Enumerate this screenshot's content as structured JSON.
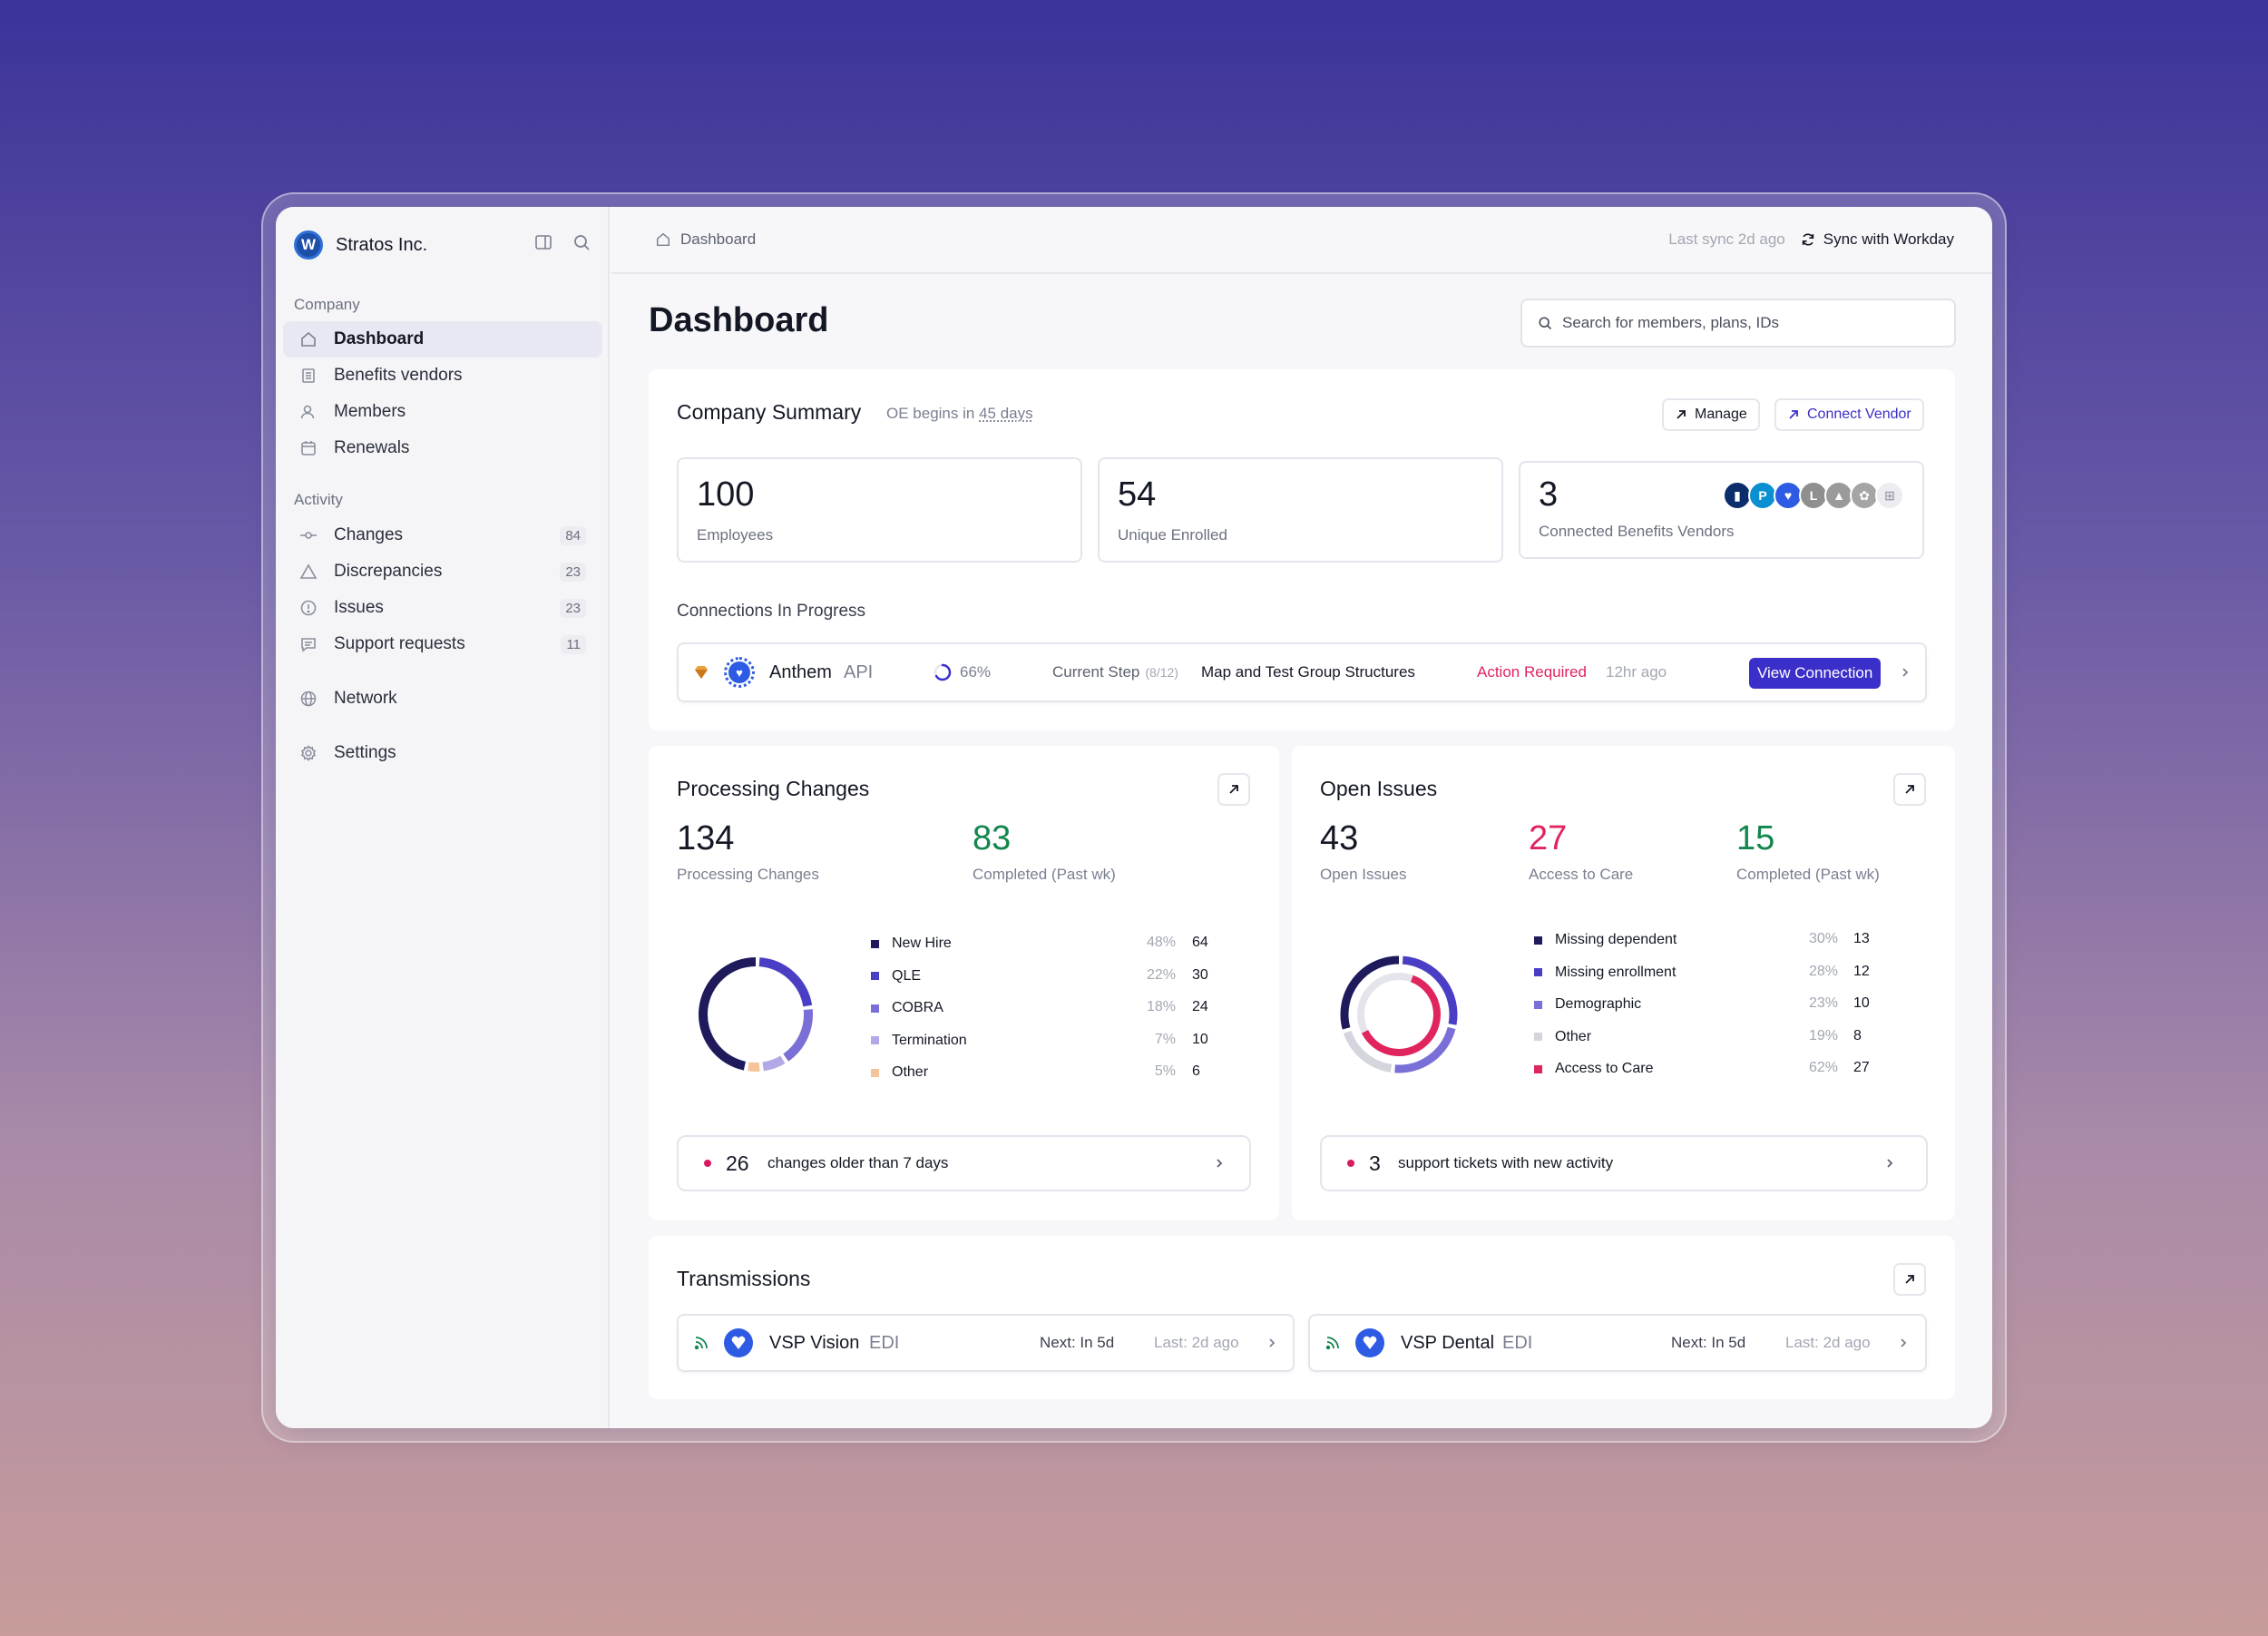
{
  "sidebar": {
    "brand": {
      "name": "Stratos Inc.",
      "logo_letter": "W"
    },
    "sections": {
      "company": "Company",
      "activity": "Activity"
    },
    "company_items": [
      {
        "label": "Dashboard",
        "icon": "home-icon",
        "active": true
      },
      {
        "label": "Benefits vendors",
        "icon": "building-icon"
      },
      {
        "label": "Members",
        "icon": "users-icon"
      },
      {
        "label": "Renewals",
        "icon": "calendar-icon"
      }
    ],
    "activity_items": [
      {
        "label": "Changes",
        "icon": "commit-icon",
        "count": "84"
      },
      {
        "label": "Discrepancies",
        "icon": "warning-icon",
        "count": "23"
      },
      {
        "label": "Issues",
        "icon": "info-circle-icon",
        "count": "23"
      },
      {
        "label": "Support requests",
        "icon": "chat-icon",
        "count": "11"
      }
    ],
    "network": "Network",
    "settings": "Settings"
  },
  "topbar": {
    "breadcrumb": "Dashboard",
    "last_sync": "Last sync 2d ago",
    "sync_label": "Sync with Workday"
  },
  "page": {
    "title": "Dashboard",
    "search_placeholder": "Search for members, plans, IDs"
  },
  "summary": {
    "title": "Company Summary",
    "oe_prefix": "OE begins in ",
    "oe_days": "45 days",
    "manage": "Manage",
    "connect_vendor": "Connect Vendor",
    "stats": [
      {
        "value": "100",
        "label": "Employees"
      },
      {
        "value": "54",
        "label": "Unique Enrolled"
      },
      {
        "value": "3",
        "label": "Connected Benefits Vendors"
      }
    ],
    "connections_title": "Connections In Progress",
    "connection": {
      "vendor": "Anthem",
      "type": "API",
      "progress": "66%",
      "progress_value": 0.66,
      "step_label": "Current Step",
      "step_count": "(8/12)",
      "step_name": "Map and Test Group Structures",
      "status": "Action Required",
      "time": "12hr ago",
      "action": "View Connection"
    }
  },
  "processing": {
    "title": "Processing Changes",
    "main_value": "134",
    "main_label": "Processing Changes",
    "completed_value": "83",
    "completed_label": "Completed (Past wk)",
    "legend": [
      {
        "label": "New Hire",
        "pct": "48%",
        "value": "64",
        "color": "#1f1a5c"
      },
      {
        "label": "QLE",
        "pct": "22%",
        "value": "30",
        "color": "#4a3fc4"
      },
      {
        "label": "COBRA",
        "pct": "18%",
        "value": "24",
        "color": "#7a6fd6"
      },
      {
        "label": "Termination",
        "pct": "7%",
        "value": "10",
        "color": "#b2aae6"
      },
      {
        "label": "Other",
        "pct": "5%",
        "value": "6",
        "color": "#f5c49a"
      }
    ],
    "footer_count": "26",
    "footer_text": "changes older than 7 days"
  },
  "issues": {
    "title": "Open Issues",
    "open_value": "43",
    "open_label": "Open Issues",
    "care_value": "27",
    "care_label": "Access to Care",
    "completed_value": "15",
    "completed_label": "Completed (Past wk)",
    "legend": [
      {
        "label": "Missing dependent",
        "pct": "30%",
        "value": "13",
        "color": "#1f1a5c"
      },
      {
        "label": "Missing enrollment",
        "pct": "28%",
        "value": "12",
        "color": "#4a3fc4"
      },
      {
        "label": "Demographic",
        "pct": "23%",
        "value": "10",
        "color": "#7a6fd6"
      },
      {
        "label": "Other",
        "pct": "19%",
        "value": "8",
        "color": "#d4d5dd"
      },
      {
        "label": "Access to Care",
        "pct": "62%",
        "value": "27",
        "color": "#e0245e"
      }
    ],
    "footer_count": "3",
    "footer_text": "support tickets with new activity"
  },
  "transmissions": {
    "title": "Transmissions",
    "items": [
      {
        "vendor": "VSP Vision",
        "type": "EDI",
        "next": "Next: In 5d",
        "last": "Last: 2d ago"
      },
      {
        "vendor": "VSP Dental",
        "type": "EDI",
        "next": "Next: In 5d",
        "last": "Last: 2d ago"
      }
    ]
  },
  "colors": {
    "accent": "#3b2fc9",
    "green": "#12864d",
    "red": "#e0245e"
  }
}
